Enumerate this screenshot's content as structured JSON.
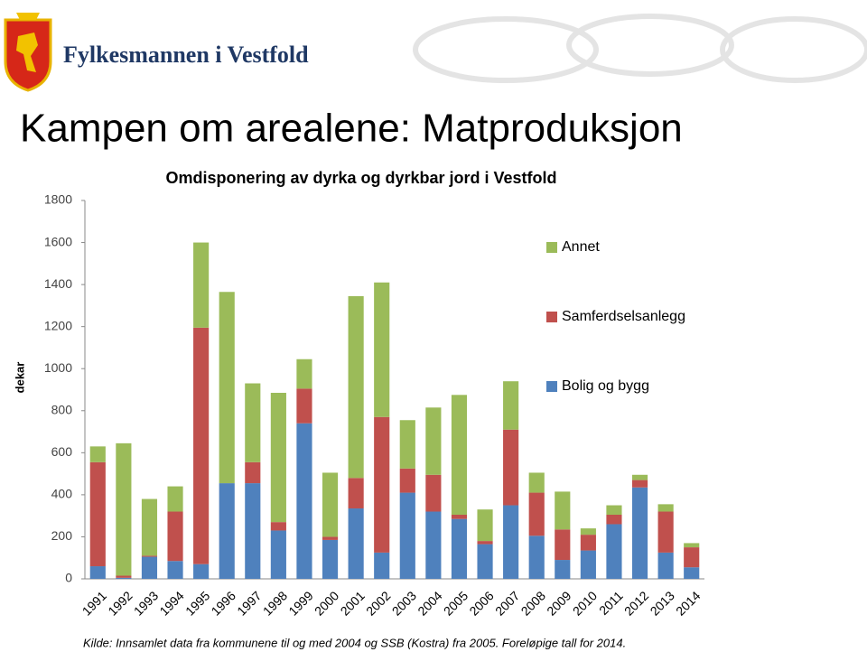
{
  "slide": {
    "organization": "Fylkesmannen i Vestfold",
    "title": "Kampen om arealene: Matproduksjon",
    "source": "Kilde: Innsamlet data fra kommunene til og med 2004 og SSB (Kostra) fra 2005. Foreløpige tall for 2014."
  },
  "chart_data": {
    "type": "stacked-bar",
    "title": "Omdisponering av dyrka og dyrkbar jord i Vestfold",
    "y_label": "dekar",
    "categories": [
      "1991",
      "1992",
      "1993",
      "1994",
      "1995",
      "1996",
      "1997",
      "1998",
      "1999",
      "2000",
      "2001",
      "2002",
      "2003",
      "2004",
      "2005",
      "2006",
      "2007",
      "2008",
      "2009",
      "2010",
      "2011",
      "2012",
      "2013",
      "2014"
    ],
    "series": [
      {
        "name": "Bolig og bygg",
        "color": "#4f81bd",
        "values": [
          60,
          5,
          105,
          85,
          70,
          455,
          455,
          230,
          740,
          185,
          335,
          125,
          410,
          320,
          285,
          165,
          350,
          205,
          90,
          135,
          260,
          435,
          125,
          55
        ]
      },
      {
        "name": "Samferdselsanlegg",
        "color": "#c0504d",
        "values": [
          495,
          10,
          5,
          235,
          1125,
          0,
          100,
          40,
          165,
          15,
          145,
          645,
          115,
          175,
          20,
          15,
          360,
          205,
          145,
          75,
          45,
          35,
          195,
          95
        ]
      },
      {
        "name": "Annet",
        "color": "#9bbb59",
        "values": [
          75,
          630,
          270,
          120,
          405,
          910,
          375,
          615,
          140,
          305,
          865,
          640,
          230,
          320,
          570,
          150,
          230,
          95,
          180,
          30,
          45,
          25,
          35,
          20
        ]
      }
    ],
    "ylim": [
      0,
      1800
    ],
    "yticks": [
      0,
      200,
      400,
      600,
      800,
      1000,
      1200,
      1400,
      1600,
      1800
    ],
    "grid": false,
    "legend": "right"
  }
}
